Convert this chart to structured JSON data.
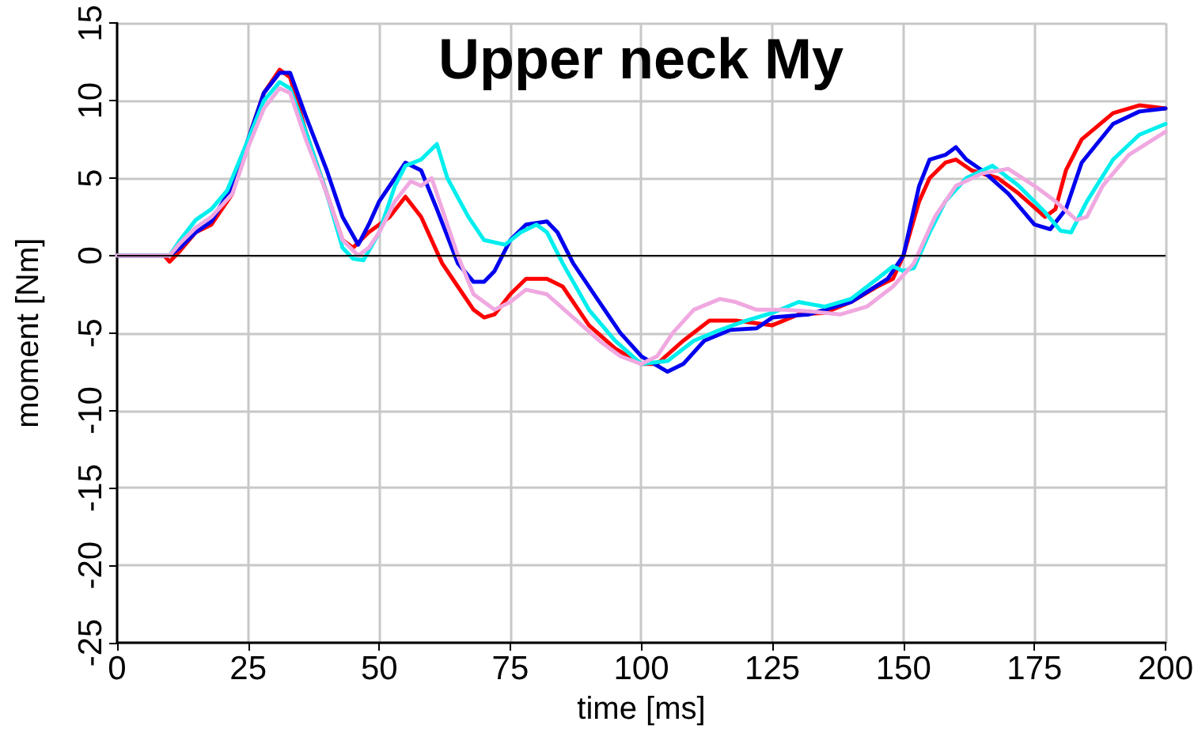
{
  "chart_data": {
    "type": "line",
    "title": "Upper neck My",
    "xlabel": "time [ms]",
    "ylabel": "moment [Nm]",
    "xlim": [
      0,
      200
    ],
    "xticks": [
      0,
      25,
      50,
      75,
      100,
      125,
      150,
      175,
      200
    ],
    "ylim": [
      -25,
      15
    ],
    "yticks": [
      -25,
      -20,
      -15,
      -10,
      -5,
      0,
      5,
      10,
      15
    ],
    "grid": true,
    "marker": "none",
    "line_style": "solid",
    "ref_lines": [
      {
        "axis": "y",
        "value": 0,
        "color": "#000000"
      }
    ],
    "series": [
      {
        "color": "#ff0000",
        "x": [
          0,
          9,
          10,
          12,
          15,
          18,
          22,
          25,
          28,
          31,
          33,
          36,
          40,
          43,
          45,
          48,
          52,
          55,
          58,
          62,
          65,
          68,
          70,
          72,
          75,
          78,
          82,
          85,
          90,
          95,
          100,
          103,
          108,
          113,
          118,
          125,
          130,
          135,
          140,
          145,
          148,
          150,
          153,
          155,
          158,
          160,
          163,
          168,
          172,
          177,
          179,
          181,
          184,
          190,
          195,
          200
        ],
        "values": [
          0,
          0,
          -0.4,
          0.3,
          1.5,
          2,
          4,
          7.5,
          10.5,
          12,
          11.5,
          8,
          4,
          1,
          0.5,
          1.5,
          2.5,
          3.8,
          2.5,
          -0.5,
          -2,
          -3.5,
          -4,
          -3.8,
          -2.5,
          -1.5,
          -1.5,
          -2,
          -4.5,
          -6,
          -7,
          -7,
          -5.5,
          -4.2,
          -4.2,
          -4.5,
          -3.8,
          -3.7,
          -3,
          -2,
          -1.5,
          0,
          3.5,
          5,
          6,
          6.2,
          5.5,
          5,
          4,
          2.5,
          3,
          5.5,
          7.5,
          9.2,
          9.7,
          9.5
        ]
      },
      {
        "color": "#0000ee",
        "x": [
          0,
          10,
          12,
          15,
          18,
          22,
          25,
          28,
          31,
          33,
          36,
          40,
          43,
          46,
          48,
          50,
          53,
          55,
          58,
          61,
          65,
          68,
          70,
          72,
          75,
          78,
          82,
          84,
          87,
          92,
          96,
          100,
          105,
          108,
          112,
          117,
          122,
          125,
          132,
          140,
          147,
          150,
          153,
          155,
          158,
          160,
          162,
          165,
          170,
          175,
          178,
          181,
          184,
          190,
          195,
          200
        ],
        "values": [
          0,
          0,
          0.5,
          1.5,
          2.2,
          4.5,
          7.5,
          10.5,
          11.8,
          11.8,
          9,
          5.5,
          2.5,
          0.7,
          2,
          3.5,
          5,
          6,
          5.5,
          3,
          -0.5,
          -1.7,
          -1.7,
          -1,
          1,
          2,
          2.2,
          1.5,
          -0.5,
          -3,
          -5,
          -6.5,
          -7.5,
          -7,
          -5.5,
          -4.8,
          -4.7,
          -4,
          -3.8,
          -3,
          -1.5,
          0,
          4.5,
          6.2,
          6.5,
          7,
          6.2,
          5.5,
          4,
          2,
          1.7,
          3,
          6,
          8.5,
          9.3,
          9.5
        ]
      },
      {
        "color": "#00eeee",
        "x": [
          0,
          10,
          12,
          15,
          18,
          21,
          25,
          28,
          31,
          33,
          36,
          40,
          43,
          45,
          47,
          50,
          53,
          55,
          58,
          61,
          63,
          67,
          70,
          74,
          77,
          80,
          82,
          85,
          90,
          95,
          100,
          105,
          110,
          115,
          120,
          125,
          130,
          135,
          140,
          145,
          148,
          150,
          152,
          155,
          158,
          162,
          167,
          172,
          177,
          180,
          182,
          185,
          190,
          195,
          200
        ],
        "values": [
          0,
          0,
          1,
          2.3,
          3,
          4.2,
          7.5,
          10,
          11.2,
          10.8,
          8,
          4,
          0.5,
          -0.2,
          -0.3,
          1.5,
          4.5,
          5.8,
          6.2,
          7.2,
          5,
          2.5,
          1,
          0.7,
          1.5,
          2,
          1.5,
          -0.5,
          -3.5,
          -5.5,
          -7,
          -6.8,
          -5.5,
          -4.8,
          -4.2,
          -3.7,
          -3,
          -3.3,
          -2.8,
          -1.5,
          -0.7,
          -1,
          -0.8,
          1.5,
          3.5,
          5,
          5.8,
          4.5,
          2.8,
          1.6,
          1.5,
          3.5,
          6.2,
          7.8,
          8.5
        ]
      },
      {
        "color": "#f0a8e0",
        "x": [
          0,
          10,
          12,
          15,
          18,
          22,
          25,
          28,
          31,
          33,
          36,
          40,
          43,
          46,
          48,
          50,
          53,
          56,
          58,
          60,
          62,
          65,
          68,
          72,
          75,
          78,
          82,
          87,
          92,
          96,
          100,
          103,
          106,
          110,
          115,
          118,
          122,
          127,
          132,
          138,
          143,
          148,
          152,
          156,
          160,
          165,
          170,
          175,
          179,
          183,
          185,
          188,
          193,
          200
        ],
        "values": [
          0,
          0,
          0.8,
          1.8,
          2.5,
          4,
          7,
          9.5,
          10.8,
          10.5,
          7.5,
          4,
          1,
          0,
          0.5,
          1.5,
          3.5,
          4.8,
          4.5,
          5,
          3,
          0,
          -2.5,
          -3.5,
          -3,
          -2.2,
          -2.5,
          -4,
          -5.5,
          -6.5,
          -7,
          -6.5,
          -5,
          -3.5,
          -2.8,
          -3,
          -3.5,
          -3.5,
          -3.6,
          -3.8,
          -3.3,
          -2,
          -0.5,
          2.5,
          4.5,
          5.3,
          5.6,
          4.5,
          3.5,
          2.3,
          2.5,
          4.5,
          6.5,
          8
        ]
      }
    ]
  }
}
